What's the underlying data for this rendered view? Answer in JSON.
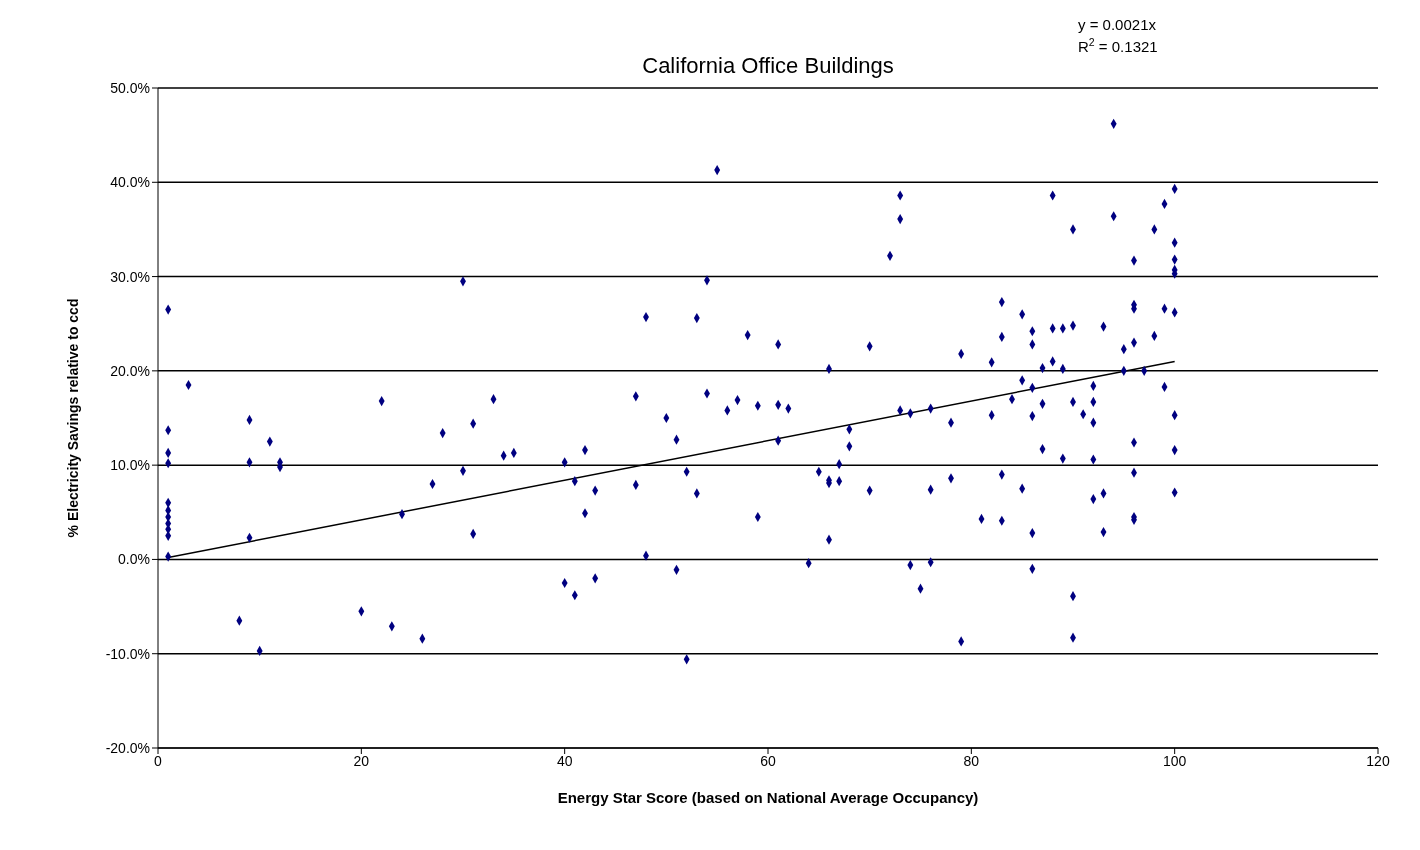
{
  "chart_data": {
    "type": "scatter",
    "title": "California Office Buildings",
    "xlabel": "Energy Star Score (based on National Average Occupancy)",
    "ylabel": "% Electricity Savings relative to ccd",
    "annotations": [
      "y = 0.0021x",
      "R$^{2}$ = 0.1321"
    ],
    "xlim": [
      0,
      120
    ],
    "xticks": [
      0,
      20,
      40,
      60,
      80,
      100,
      120
    ],
    "ylim": [
      -20,
      50
    ],
    "yticks": [
      {
        "value": -20,
        "label": "-20.0%"
      },
      {
        "value": -10,
        "label": "-10.0%"
      },
      {
        "value": 0,
        "label": "0.0%"
      },
      {
        "value": 10,
        "label": "10.0%"
      },
      {
        "value": 20,
        "label": "20.0%"
      },
      {
        "value": 30,
        "label": "30.0%"
      },
      {
        "value": 40,
        "label": "40.0%"
      },
      {
        "value": 50,
        "label": "50.0%"
      }
    ],
    "grid": "y",
    "series": [
      {
        "color": "#000080",
        "marker": "diamond",
        "x": [
          1,
          1,
          1,
          1,
          1,
          1,
          1,
          1,
          1,
          1,
          1,
          3,
          9,
          9,
          9,
          11,
          12,
          12,
          8,
          10,
          20,
          22,
          23,
          24,
          26,
          27,
          28,
          30,
          30,
          31,
          31,
          33,
          34,
          35,
          40,
          40,
          41,
          41,
          42,
          42,
          43,
          43,
          47,
          47,
          48,
          48,
          50,
          51,
          51,
          52,
          52,
          53,
          53,
          54,
          54,
          55,
          56,
          57,
          58,
          59,
          59,
          61,
          61,
          61,
          62,
          64,
          65,
          66,
          66,
          66,
          66,
          67,
          67,
          68,
          68,
          70,
          70,
          72,
          73,
          73,
          73,
          74,
          74,
          75,
          76,
          76,
          76,
          78,
          78,
          79,
          79,
          81,
          82,
          82,
          83,
          83,
          83,
          83,
          84,
          85,
          85,
          85,
          86,
          86,
          86,
          86,
          86,
          86,
          87,
          87,
          87,
          88,
          88,
          88,
          89,
          89,
          89,
          90,
          90,
          90,
          90,
          90,
          91,
          92,
          92,
          92,
          92,
          92,
          93,
          93,
          93,
          94,
          94,
          95,
          95,
          96,
          96,
          96,
          96,
          96,
          96,
          96,
          96,
          97,
          98,
          98,
          99,
          99,
          99,
          100,
          100,
          100,
          100,
          100,
          100,
          100,
          100,
          100
        ],
        "values": [
          26.5,
          13.7,
          11.3,
          10.2,
          6,
          5.2,
          4.5,
          3.8,
          3.2,
          2.5,
          0.3,
          18.5,
          14.8,
          10.3,
          2.3,
          12.5,
          10.3,
          9.8,
          -6.5,
          -9.7,
          -5.5,
          16.8,
          -7.1,
          4.8,
          -8.4,
          8,
          13.4,
          29.5,
          9.4,
          14.4,
          2.7,
          17,
          11,
          11.3,
          10.3,
          -2.5,
          8.3,
          -3.8,
          11.6,
          4.9,
          7.3,
          -2,
          17.3,
          7.9,
          25.7,
          0.4,
          15,
          12.7,
          -1.1,
          9.3,
          -10.6,
          25.6,
          7,
          29.6,
          17.6,
          41.3,
          15.8,
          16.9,
          23.8,
          16.3,
          4.5,
          22.8,
          16.4,
          12.6,
          16,
          -0.4,
          9.3,
          8.4,
          8.1,
          20.2,
          2.1,
          10.1,
          8.3,
          13.8,
          12,
          22.6,
          7.3,
          32.2,
          38.6,
          36.1,
          15.8,
          15.5,
          -0.6,
          -3.1,
          16,
          7.4,
          -0.3,
          14.5,
          8.6,
          21.8,
          -8.7,
          4.3,
          20.9,
          15.3,
          27.3,
          23.6,
          9,
          4.1,
          17,
          26,
          19,
          7.5,
          24.2,
          22.8,
          18.2,
          15.2,
          2.8,
          -1,
          20.3,
          16.5,
          11.7,
          38.6,
          24.5,
          21,
          24.5,
          20.2,
          10.7,
          35,
          24.8,
          16.7,
          -3.9,
          -8.3,
          15.4,
          18.4,
          16.7,
          14.5,
          10.6,
          6.4,
          24.7,
          7,
          2.9,
          46.2,
          36.4,
          22.3,
          20,
          31.7,
          27,
          26.6,
          23,
          12.4,
          9.2,
          4.5,
          4.2,
          20,
          35,
          23.7,
          37.7,
          26.6,
          18.3,
          39.3,
          33.6,
          31.8,
          30.7,
          30.3,
          26.2,
          15.3,
          11.6,
          7.1
        ]
      },
      {
        "type": "line",
        "color": "#000000",
        "marker": "none",
        "x": [
          1,
          100
        ],
        "values": [
          0.2,
          21
        ]
      }
    ]
  }
}
